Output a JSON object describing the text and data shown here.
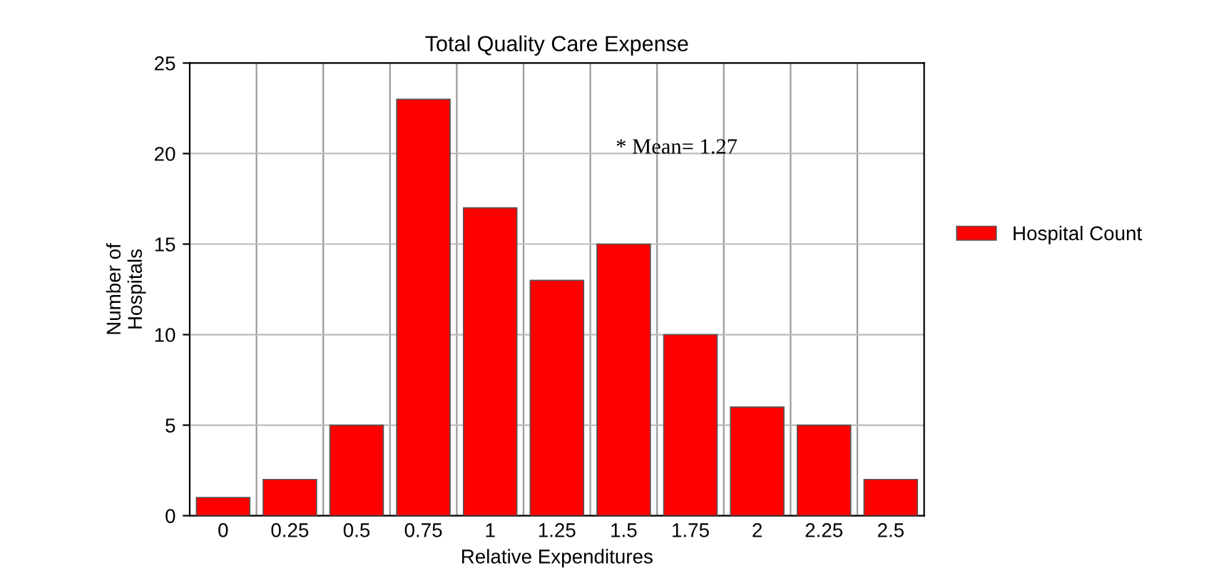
{
  "chart_data": {
    "type": "bar",
    "title": "Total Quality Care Expense",
    "xlabel": "Relative Expenditures",
    "ylabel": "Number of\nHospitals",
    "categories": [
      "0",
      "0.25",
      "0.5",
      "0.75",
      "1",
      "1.25",
      "1.5",
      "1.75",
      "2",
      "2.25",
      "2.5"
    ],
    "series": [
      {
        "name": "Hospital Count",
        "color": "#ff0000",
        "values": [
          1,
          2,
          5,
          23,
          17,
          13,
          15,
          10,
          6,
          5,
          2
        ]
      }
    ],
    "ylim": [
      0,
      25
    ],
    "yticks": [
      0,
      5,
      10,
      15,
      20,
      25
    ],
    "grid": true,
    "legend": "right",
    "annotations": [
      "* Mean= 1.27"
    ]
  }
}
